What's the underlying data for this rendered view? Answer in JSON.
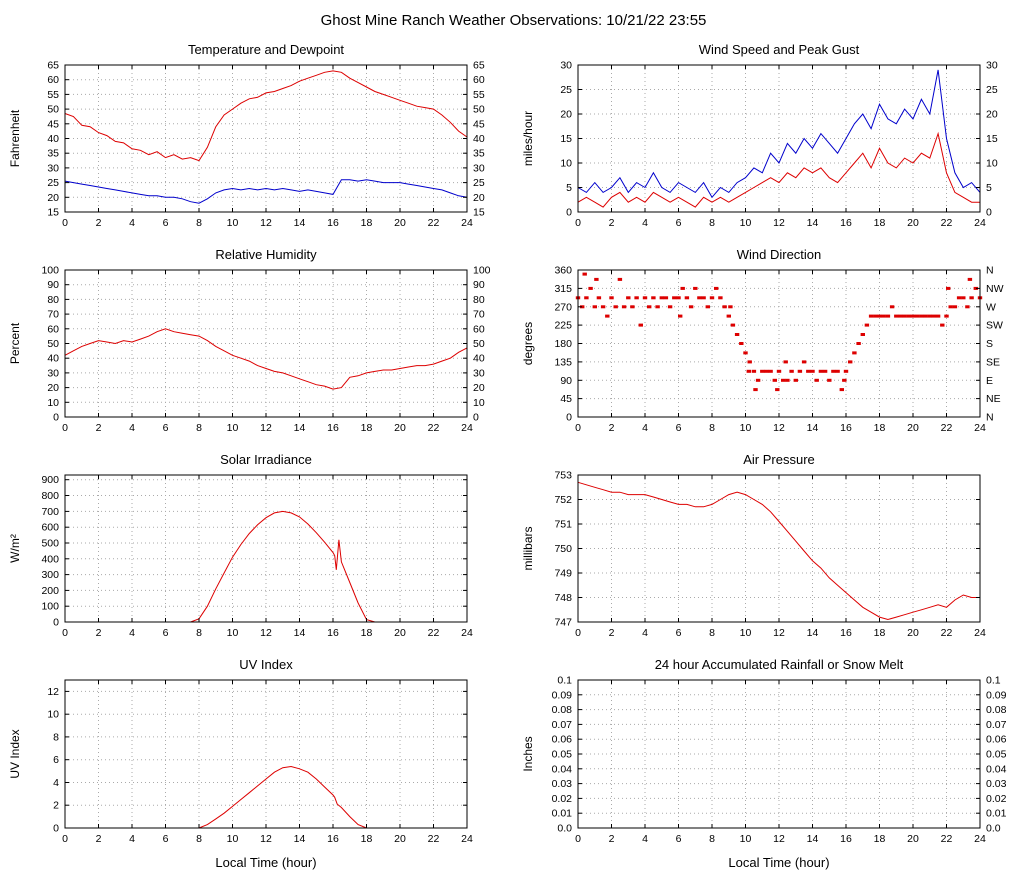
{
  "page_title": "Ghost Mine Ranch Weather Observations: 10/21/22 23:55",
  "x_axis": {
    "min": 0,
    "max": 24,
    "tick_step": 2,
    "bottom_label": "Local Time (hour)"
  },
  "colors": {
    "red": "#dd0000",
    "blue": "#0000cc",
    "grid": "#aaaaaa",
    "frame": "#000000"
  },
  "chart_data": [
    {
      "type": "line",
      "title": "Temperature and Dewpoint",
      "ylabel": "Fahrenheit",
      "xlabel": "",
      "ylim": [
        15,
        65
      ],
      "yticks": [
        15,
        20,
        25,
        30,
        35,
        40,
        45,
        50,
        55,
        60,
        65
      ],
      "right_tick_labels": "mirror",
      "series": [
        {
          "name": "temperature",
          "color": "#dd0000",
          "x_start": 0,
          "x_step": 0.5,
          "y": [
            48.5,
            47.5,
            44.5,
            44,
            42,
            41,
            39,
            38.5,
            36.5,
            36,
            34.5,
            35.5,
            33.5,
            34.5,
            33,
            33.5,
            32.5,
            37,
            44,
            48,
            50,
            52,
            53.5,
            54,
            55.5,
            56,
            57,
            58,
            59.5,
            60.5,
            61.5,
            62.5,
            63,
            62.5,
            60.5,
            59,
            57.5,
            56,
            55,
            54,
            53,
            52,
            51,
            50.5,
            50,
            48,
            45.5,
            42.5,
            40.5
          ]
        },
        {
          "name": "dewpoint",
          "color": "#0000cc",
          "x_start": 0,
          "x_step": 0.5,
          "y": [
            25.5,
            25,
            24.5,
            24,
            23.5,
            23,
            22.5,
            22,
            21.5,
            21,
            20.5,
            20.5,
            20,
            20,
            19.5,
            18.5,
            18,
            19.5,
            21.5,
            22.5,
            23,
            22.5,
            23,
            22.5,
            23,
            22.5,
            23,
            22.5,
            22,
            22.5,
            22,
            21.5,
            21,
            26,
            26,
            25.5,
            26,
            25.5,
            25,
            25,
            25,
            24.5,
            24,
            23.5,
            23,
            22.5,
            21.5,
            20.5,
            20
          ]
        }
      ]
    },
    {
      "type": "line",
      "title": "Wind Speed and Peak Gust",
      "ylabel": "miles/hour",
      "xlabel": "",
      "ylim": [
        0,
        30
      ],
      "yticks": [
        0,
        5,
        10,
        15,
        20,
        25,
        30
      ],
      "right_tick_labels": "mirror",
      "series": [
        {
          "name": "peak-gust",
          "color": "#0000cc",
          "x_start": 0,
          "x_step": 0.5,
          "y": [
            5,
            4,
            6,
            4,
            5,
            7,
            4,
            6,
            5,
            8,
            5,
            4,
            6,
            5,
            4,
            6,
            3,
            5,
            4,
            6,
            7,
            9,
            8,
            12,
            10,
            14,
            12,
            15,
            13,
            16,
            14,
            12,
            15,
            18,
            20,
            17,
            22,
            19,
            18,
            21,
            19,
            23,
            20,
            29,
            15,
            8,
            5,
            6,
            4
          ]
        },
        {
          "name": "wind-speed",
          "color": "#dd0000",
          "x_start": 0,
          "x_step": 0.5,
          "y": [
            2,
            3,
            2,
            1,
            3,
            4,
            2,
            3,
            2,
            4,
            3,
            2,
            3,
            2,
            1,
            3,
            2,
            3,
            2,
            3,
            4,
            5,
            6,
            7,
            6,
            8,
            7,
            9,
            8,
            9,
            7,
            6,
            8,
            10,
            12,
            9,
            13,
            10,
            9,
            11,
            10,
            12,
            11,
            16,
            8,
            4,
            3,
            2,
            2
          ]
        }
      ]
    },
    {
      "type": "line",
      "title": "Relative Humidity",
      "ylabel": "Percent",
      "xlabel": "",
      "ylim": [
        0,
        100
      ],
      "yticks": [
        0,
        10,
        20,
        30,
        40,
        50,
        60,
        70,
        80,
        90,
        100
      ],
      "right_tick_labels": "mirror",
      "series": [
        {
          "name": "humidity",
          "color": "#dd0000",
          "x_start": 0,
          "x_step": 0.5,
          "y": [
            42,
            45,
            48,
            50,
            52,
            51,
            50,
            52,
            51,
            53,
            55,
            58,
            60,
            58,
            57,
            56,
            55,
            52,
            48,
            45,
            42,
            40,
            38,
            35,
            33,
            31,
            30,
            28,
            26,
            24,
            22,
            21,
            19,
            20,
            27,
            28,
            30,
            31,
            32,
            32,
            33,
            34,
            35,
            35,
            36,
            38,
            40,
            44,
            47
          ]
        }
      ]
    },
    {
      "type": "scatter",
      "title": "Wind Direction",
      "ylabel": "degrees",
      "xlabel": "",
      "ylim": [
        0,
        360
      ],
      "yticks": [
        0,
        45,
        90,
        135,
        180,
        225,
        270,
        315,
        360
      ],
      "right_tick_labels": [
        "N",
        "NE",
        "E",
        "SE",
        "S",
        "SW",
        "W",
        "NW",
        "N"
      ],
      "series": [
        {
          "name": "wind-direction",
          "color": "#dd0000",
          "marker": "square",
          "points": [
            [
              0,
              292
            ],
            [
              0.25,
              270
            ],
            [
              0.5,
              292
            ],
            [
              0.75,
              315
            ],
            [
              1,
              270
            ],
            [
              1.25,
              292
            ],
            [
              1.5,
              270
            ],
            [
              1.75,
              247
            ],
            [
              2,
              292
            ],
            [
              2.25,
              270
            ],
            [
              2.5,
              337
            ],
            [
              2.75,
              270
            ],
            [
              3,
              292
            ],
            [
              3.25,
              270
            ],
            [
              3.5,
              292
            ],
            [
              3.75,
              225
            ],
            [
              4,
              292
            ],
            [
              4.25,
              270
            ],
            [
              4.5,
              292
            ],
            [
              4.75,
              270
            ],
            [
              5,
              292
            ],
            [
              5.25,
              292
            ],
            [
              5.5,
              270
            ],
            [
              5.75,
              292
            ],
            [
              6,
              292
            ],
            [
              6.25,
              315
            ],
            [
              6.5,
              292
            ],
            [
              6.75,
              270
            ],
            [
              7,
              315
            ],
            [
              7.25,
              292
            ],
            [
              7.5,
              292
            ],
            [
              7.75,
              270
            ],
            [
              8,
              292
            ],
            [
              8.25,
              315
            ],
            [
              8.5,
              292
            ],
            [
              8.75,
              270
            ],
            [
              9,
              247
            ],
            [
              9.25,
              225
            ],
            [
              9.5,
              202
            ],
            [
              9.75,
              180
            ],
            [
              10,
              157
            ],
            [
              10.25,
              135
            ],
            [
              10.5,
              112
            ],
            [
              10.75,
              90
            ],
            [
              11,
              112
            ],
            [
              11.25,
              112
            ],
            [
              11.5,
              112
            ],
            [
              11.75,
              90
            ],
            [
              12,
              112
            ],
            [
              12.25,
              90
            ],
            [
              12.5,
              90
            ],
            [
              12.75,
              112
            ],
            [
              13,
              90
            ],
            [
              13.25,
              112
            ],
            [
              13.5,
              135
            ],
            [
              13.75,
              112
            ],
            [
              14,
              112
            ],
            [
              14.25,
              90
            ],
            [
              14.5,
              112
            ],
            [
              14.75,
              112
            ],
            [
              15,
              90
            ],
            [
              15.25,
              112
            ],
            [
              15.5,
              112
            ],
            [
              15.75,
              67
            ],
            [
              16,
              112
            ],
            [
              16.25,
              135
            ],
            [
              16.5,
              157
            ],
            [
              16.75,
              180
            ],
            [
              17,
              202
            ],
            [
              17.25,
              225
            ],
            [
              17.5,
              247
            ],
            [
              17.75,
              247
            ],
            [
              18,
              247
            ],
            [
              18.25,
              247
            ],
            [
              18.5,
              247
            ],
            [
              18.75,
              270
            ],
            [
              19,
              247
            ],
            [
              19.25,
              247
            ],
            [
              19.5,
              247
            ],
            [
              19.75,
              247
            ],
            [
              20,
              247
            ],
            [
              20.25,
              247
            ],
            [
              20.5,
              247
            ],
            [
              20.75,
              247
            ],
            [
              21,
              247
            ],
            [
              21.25,
              247
            ],
            [
              21.5,
              247
            ],
            [
              21.75,
              225
            ],
            [
              22,
              247
            ],
            [
              22.25,
              270
            ],
            [
              22.5,
              270
            ],
            [
              22.75,
              292
            ],
            [
              23,
              292
            ],
            [
              23.25,
              270
            ],
            [
              23.5,
              292
            ],
            [
              23.75,
              315
            ],
            [
              24,
              292
            ],
            [
              0.4,
              350
            ],
            [
              1.1,
              337
            ],
            [
              6.1,
              247
            ],
            [
              9.1,
              270
            ],
            [
              10.6,
              67
            ],
            [
              11.9,
              67
            ],
            [
              15.9,
              90
            ],
            [
              22.1,
              315
            ],
            [
              23.4,
              337
            ],
            [
              10.2,
              112
            ],
            [
              12.4,
              135
            ]
          ]
        }
      ]
    },
    {
      "type": "line",
      "title": "Solar Irradiance",
      "ylabel": "W/m²",
      "xlabel": "",
      "ylim": [
        0,
        930
      ],
      "yticks": [
        0,
        100,
        200,
        300,
        400,
        500,
        600,
        700,
        800,
        900
      ],
      "right_tick_labels": null,
      "series": [
        {
          "name": "solar-irradiance",
          "color": "#dd0000",
          "x": [
            0,
            7.5,
            8,
            8.5,
            9,
            9.5,
            10,
            10.5,
            11,
            11.5,
            12,
            12.5,
            13,
            13.5,
            14,
            14.5,
            15,
            15.5,
            16,
            16.1,
            16.2,
            16.35,
            16.5,
            17,
            17.5,
            18,
            18.5,
            24
          ],
          "y": [
            0,
            0,
            20,
            100,
            210,
            310,
            410,
            490,
            560,
            615,
            660,
            690,
            700,
            690,
            665,
            620,
            565,
            505,
            440,
            420,
            330,
            520,
            380,
            250,
            120,
            15,
            0,
            0
          ]
        }
      ]
    },
    {
      "type": "line",
      "title": "Air Pressure",
      "ylabel": "millibars",
      "xlabel": "",
      "ylim": [
        747,
        753
      ],
      "yticks": [
        747,
        748,
        749,
        750,
        751,
        752,
        753
      ],
      "right_tick_labels": null,
      "series": [
        {
          "name": "pressure",
          "color": "#dd0000",
          "x_start": 0,
          "x_step": 0.5,
          "y": [
            752.7,
            752.6,
            752.5,
            752.4,
            752.3,
            752.3,
            752.2,
            752.2,
            752.2,
            752.1,
            752.0,
            751.9,
            751.8,
            751.8,
            751.7,
            751.7,
            751.8,
            752.0,
            752.2,
            752.3,
            752.2,
            752.0,
            751.8,
            751.5,
            751.1,
            750.7,
            750.3,
            749.9,
            749.5,
            749.2,
            748.8,
            748.5,
            748.2,
            747.9,
            747.6,
            747.4,
            747.2,
            747.1,
            747.2,
            747.3,
            747.4,
            747.5,
            747.6,
            747.7,
            747.6,
            747.9,
            748.1,
            748.0,
            748.0
          ]
        }
      ]
    },
    {
      "type": "line",
      "title": "UV Index",
      "ylabel": "UV Index",
      "xlabel": "Local Time (hour)",
      "ylim": [
        0,
        13
      ],
      "yticks": [
        0,
        2,
        4,
        6,
        8,
        10,
        12
      ],
      "right_tick_labels": null,
      "series": [
        {
          "name": "uv-index",
          "color": "#dd0000",
          "x": [
            0,
            8,
            8.5,
            9,
            9.5,
            10,
            10.5,
            11,
            11.5,
            12,
            12.5,
            13,
            13.5,
            14,
            14.5,
            15,
            15.5,
            16,
            16.1,
            16.25,
            16.5,
            17,
            17.5,
            18,
            24
          ],
          "y": [
            0,
            0,
            0.3,
            0.8,
            1.3,
            1.9,
            2.5,
            3.1,
            3.7,
            4.3,
            4.9,
            5.3,
            5.4,
            5.2,
            4.9,
            4.3,
            3.6,
            2.9,
            2.7,
            2.1,
            1.8,
            1.0,
            0.3,
            0,
            0
          ]
        }
      ]
    },
    {
      "type": "line",
      "title": "24 hour Accumulated Rainfall or Snow Melt",
      "ylabel": "Inches",
      "xlabel": "Local Time (hour)",
      "ylim": [
        0,
        0.1
      ],
      "yticks": [
        0,
        0.01,
        0.02,
        0.03,
        0.04,
        0.05,
        0.06,
        0.07,
        0.08,
        0.09,
        0.1
      ],
      "ytick_labels": [
        "0.0",
        "0.01",
        "0.02",
        "0.03",
        "0.04",
        "0.05",
        "0.06",
        "0.07",
        "0.08",
        "0.09",
        "0.1"
      ],
      "right_tick_labels": "mirror",
      "series": [
        {
          "name": "rainfall",
          "color": "#dd0000",
          "x": [
            0,
            24
          ],
          "y": [
            0,
            0
          ]
        }
      ]
    }
  ]
}
